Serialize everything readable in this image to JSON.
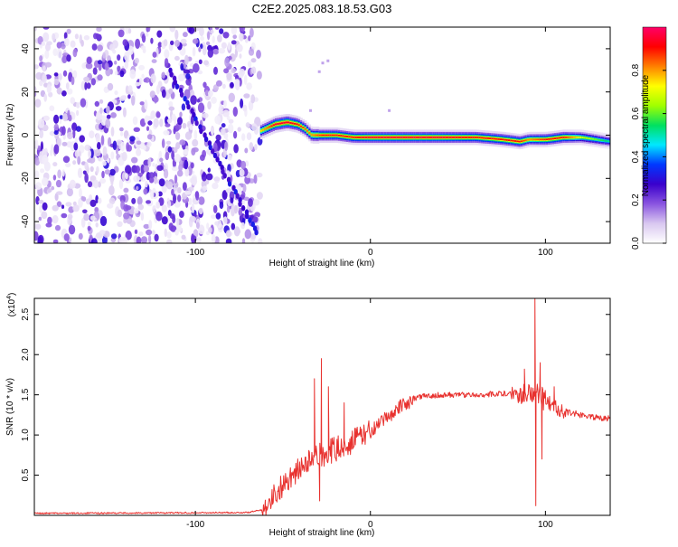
{
  "title": "C2E2.2025.083.18.53.G03",
  "chart_data": [
    {
      "type": "heatmap",
      "xlabel": "Height of straight line (km)",
      "ylabel": "Frequency (Hz)",
      "xlim": [
        -192,
        137
      ],
      "ylim": [
        -50,
        50
      ],
      "xticks": [
        -100,
        0,
        100
      ],
      "xtick_labels": [
        "-100",
        "0",
        "100"
      ],
      "yticks": [
        -40,
        -20,
        0,
        20,
        40
      ],
      "ytick_labels": [
        "-40",
        "-20",
        "0",
        "20",
        "40"
      ],
      "colorbar": {
        "label": "Normalized spectral amplitude",
        "range": [
          0,
          1
        ],
        "ticks": [
          0.0,
          0.2,
          0.4,
          0.6,
          0.8
        ],
        "tick_labels": [
          "0.0",
          "0.2",
          "0.4",
          "0.6",
          "0.8"
        ],
        "colors": [
          "#ffffff",
          "#d9c8f0",
          "#8a55e0",
          "#3a00cc",
          "#0038ff",
          "#00e8ff",
          "#00e060",
          "#a0ff00",
          "#ffff00",
          "#ff8000",
          "#ff0000",
          "#ff0068"
        ]
      },
      "noise_region": {
        "x_range": [
          -192,
          -63
        ],
        "y_range": [
          -50,
          50
        ],
        "level": 0.15
      },
      "artifact_track": {
        "from": [
          -115,
          30
        ],
        "to": [
          -65,
          -45
        ],
        "level": 0.25
      },
      "signal_track": {
        "x": [
          -63,
          -55,
          -48,
          -42,
          -38,
          -34,
          -28,
          -20,
          -10,
          0,
          20,
          40,
          60,
          75,
          85,
          90,
          95,
          100,
          110,
          120,
          137
        ],
        "freq": [
          2,
          5,
          6,
          5,
          3,
          0,
          0,
          0,
          -1,
          -1,
          -1,
          -1,
          -1,
          -2,
          -3,
          -2,
          -2,
          -2,
          -1,
          -1,
          -3
        ],
        "peak": [
          0.75,
          0.95,
          0.95,
          0.9,
          0.85,
          0.8,
          0.9,
          0.9,
          0.9,
          0.95,
          0.95,
          0.95,
          0.9,
          0.9,
          0.9,
          0.8,
          0.85,
          0.9,
          0.9,
          0.7,
          0.5
        ]
      }
    },
    {
      "type": "line",
      "xlabel": "Height of straight line (km)",
      "ylabel": "SNR (10 * v/v)",
      "y_multiplier": "(x10",
      "y_multiplier_exp": "4",
      "y_multiplier_close": ")",
      "xlim": [
        -192,
        137
      ],
      "ylim": [
        0,
        27000
      ],
      "xticks": [
        -100,
        0,
        100
      ],
      "xtick_labels": [
        "-100",
        "0",
        "100"
      ],
      "yticks": [
        5000,
        10000,
        15000,
        20000,
        25000
      ],
      "ytick_labels": [
        "0.5",
        "1.0",
        "1.5",
        "2.0",
        "2.5"
      ],
      "color": "#e8312e",
      "x": [
        -192,
        -150,
        -100,
        -70,
        -62,
        -55,
        -50,
        -45,
        -40,
        -35,
        -30,
        -25,
        -20,
        -15,
        -10,
        -5,
        0,
        5,
        10,
        15,
        20,
        25,
        30,
        40,
        50,
        60,
        70,
        80,
        88,
        93,
        96,
        100,
        105,
        110,
        120,
        130,
        137
      ],
      "y": [
        250,
        280,
        320,
        350,
        700,
        2500,
        3800,
        5000,
        5800,
        6700,
        7300,
        7800,
        8200,
        8700,
        9300,
        9800,
        10500,
        11200,
        12300,
        13200,
        13900,
        14500,
        14800,
        15000,
        15000,
        15000,
        15100,
        15200,
        15300,
        15100,
        14900,
        14300,
        13500,
        13000,
        12500,
        12200,
        12000
      ],
      "spikes": [
        {
          "x": -28,
          "y": 19500
        },
        {
          "x": -32,
          "y": 17000
        },
        {
          "x": -24,
          "y": 16000
        },
        {
          "x": -29,
          "y": 1800
        },
        {
          "x": -15,
          "y": 14000
        },
        {
          "x": 88,
          "y": 18200
        },
        {
          "x": 94,
          "y": 27000
        },
        {
          "x": 94.5,
          "y": 1200
        },
        {
          "x": 97,
          "y": 19000
        },
        {
          "x": 98,
          "y": 7000
        },
        {
          "x": 105,
          "y": 16000
        }
      ]
    }
  ]
}
